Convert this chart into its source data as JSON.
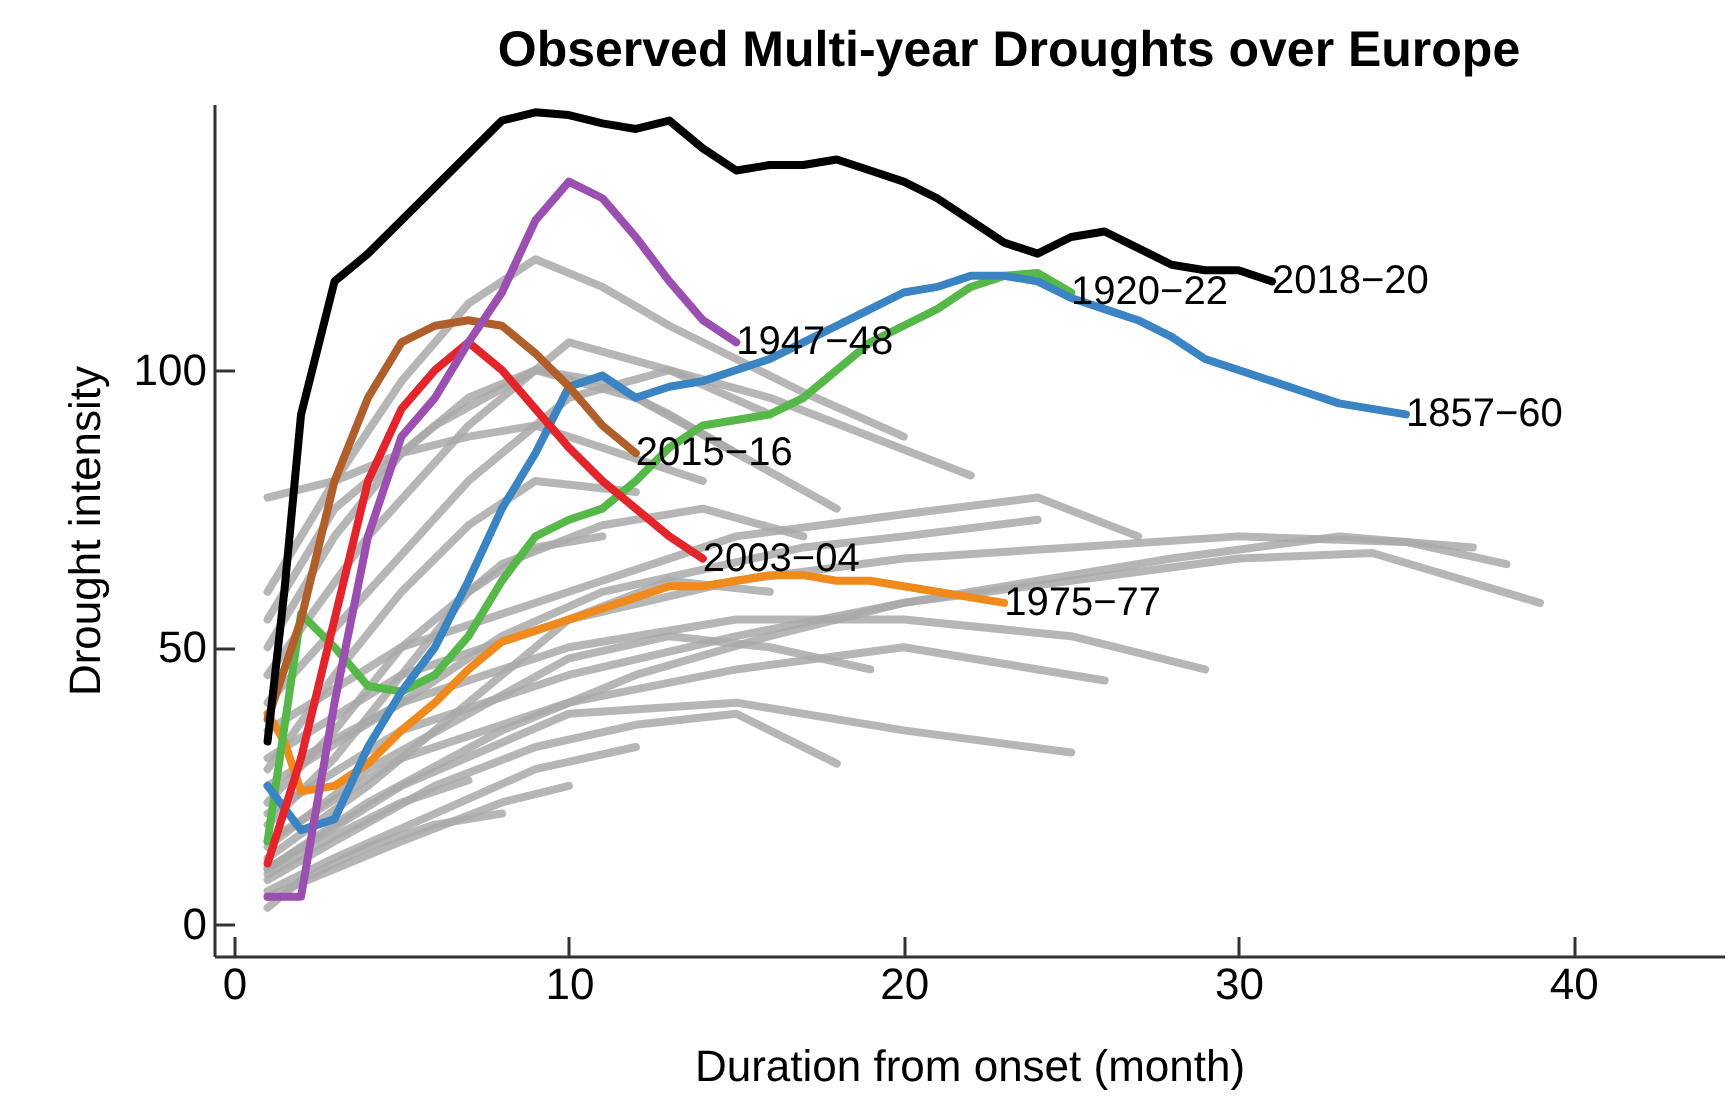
{
  "chart_data": {
    "type": "line",
    "title": "Observed Multi-year Droughts over Europe",
    "xlabel": "Duration from onset (month)",
    "ylabel": "Drought intensity",
    "xlim": [
      -0.6,
      44.5
    ],
    "ylim": [
      -5.7,
      148
    ],
    "xticks": [
      0,
      10,
      20,
      30,
      40
    ],
    "yticks": [
      0,
      50,
      100
    ],
    "series": [
      {
        "color": "#a9a9a9",
        "x": [
          1,
          3,
          5,
          7,
          9,
          11,
          13,
          15,
          17,
          20
        ],
        "values": [
          60,
          80,
          98,
          112,
          120,
          115,
          108,
          102,
          96,
          88
        ]
      },
      {
        "color": "#a9a9a9",
        "x": [
          1,
          5,
          10,
          15,
          20,
          25,
          30,
          35,
          38
        ],
        "values": [
          30,
          45,
          55,
          62,
          66,
          68,
          70,
          69,
          65
        ]
      },
      {
        "color": "#a9a9a9",
        "x": [
          1,
          5,
          10,
          15,
          20,
          25,
          30,
          34,
          39
        ],
        "values": [
          20,
          35,
          45,
          52,
          58,
          62,
          66,
          67,
          58
        ]
      },
      {
        "color": "#a9a9a9",
        "x": [
          1,
          5,
          10,
          15,
          20,
          26
        ],
        "values": [
          15,
          30,
          40,
          46,
          50,
          44
        ]
      },
      {
        "color": "#a9a9a9",
        "x": [
          1,
          5,
          10,
          15,
          20,
          25
        ],
        "values": [
          10,
          25,
          38,
          40,
          35,
          31
        ]
      },
      {
        "color": "#a9a9a9",
        "x": [
          1,
          5,
          10,
          15,
          20,
          25,
          29
        ],
        "values": [
          25,
          40,
          50,
          55,
          55,
          52,
          46
        ]
      },
      {
        "color": "#a9a9a9",
        "x": [
          1,
          3,
          5,
          7,
          9,
          11,
          13,
          15
        ],
        "values": [
          50,
          70,
          85,
          95,
          100,
          98,
          92,
          85
        ]
      },
      {
        "color": "#a9a9a9",
        "x": [
          1,
          3,
          5,
          7,
          9,
          11,
          14
        ],
        "values": [
          77,
          80,
          85,
          88,
          90,
          86,
          80
        ]
      },
      {
        "color": "#a9a9a9",
        "x": [
          1,
          5,
          10,
          15,
          20,
          24,
          27
        ],
        "values": [
          35,
          50,
          60,
          70,
          74,
          77,
          70
        ]
      },
      {
        "color": "#a9a9a9",
        "x": [
          1,
          4,
          7,
          10,
          13,
          16,
          19,
          22
        ],
        "values": [
          40,
          60,
          80,
          95,
          100,
          95,
          88,
          81
        ]
      },
      {
        "color": "#a9a9a9",
        "x": [
          1,
          4,
          7,
          10,
          13,
          16
        ],
        "values": [
          45,
          70,
          90,
          105,
          100,
          92
        ]
      },
      {
        "color": "#a9a9a9",
        "x": [
          1,
          3,
          6,
          9,
          12,
          15,
          18
        ],
        "values": [
          8,
          15,
          25,
          32,
          36,
          38,
          29
        ]
      },
      {
        "color": "#a9a9a9",
        "x": [
          1,
          3,
          5,
          8,
          10
        ],
        "values": [
          5,
          10,
          15,
          22,
          25
        ]
      },
      {
        "color": "#a9a9a9",
        "x": [
          1,
          3,
          6,
          9,
          12
        ],
        "values": [
          6,
          12,
          20,
          28,
          32
        ]
      },
      {
        "color": "#a9a9a9",
        "x": [
          1,
          4,
          7,
          10,
          13,
          16
        ],
        "values": [
          12,
          25,
          40,
          55,
          62,
          60
        ]
      },
      {
        "color": "#a9a9a9",
        "x": [
          1,
          3,
          5,
          7,
          9,
          11
        ],
        "values": [
          18,
          30,
          45,
          60,
          68,
          70
        ]
      },
      {
        "color": "#a9a9a9",
        "x": [
          1,
          2,
          4,
          6,
          8
        ],
        "values": [
          3,
          8,
          14,
          18,
          20
        ]
      },
      {
        "color": "#a9a9a9",
        "x": [
          1,
          4,
          8,
          12,
          16,
          20,
          24,
          28,
          33,
          37
        ],
        "values": [
          10,
          22,
          35,
          45,
          52,
          58,
          62,
          66,
          70,
          68
        ]
      },
      {
        "color": "#a9a9a9",
        "x": [
          1,
          3,
          6,
          9,
          12,
          15,
          18
        ],
        "values": [
          55,
          75,
          90,
          100,
          95,
          85,
          75
        ]
      },
      {
        "color": "#a9a9a9",
        "x": [
          1,
          3,
          5,
          7,
          9,
          12
        ],
        "values": [
          28,
          45,
          60,
          72,
          80,
          78
        ]
      },
      {
        "color": "#a9a9a9",
        "x": [
          1,
          3,
          5,
          8,
          11,
          14,
          17
        ],
        "values": [
          22,
          35,
          50,
          65,
          72,
          75,
          70
        ]
      },
      {
        "color": "#a9a9a9",
        "x": [
          2,
          5,
          8,
          11,
          14,
          17,
          20,
          24
        ],
        "values": [
          30,
          40,
          52,
          60,
          64,
          68,
          70,
          73
        ]
      },
      {
        "color": "#a9a9a9",
        "x": [
          1,
          4,
          7,
          10,
          13,
          16,
          19
        ],
        "values": [
          14,
          28,
          38,
          48,
          52,
          50,
          46
        ]
      },
      {
        "color": "#a9a9a9",
        "x": [
          1,
          3,
          5,
          7
        ],
        "values": [
          9,
          16,
          22,
          26
        ]
      },
      {
        "name": "1975−77",
        "color": "#f08a1d",
        "x": [
          1,
          1.5,
          2,
          3,
          4,
          5,
          6,
          7,
          8,
          9,
          10,
          11,
          12,
          13,
          14,
          15,
          16,
          17,
          18,
          19,
          20,
          21,
          22,
          23
        ],
        "values": [
          38,
          33,
          24,
          25,
          29,
          35,
          40,
          46,
          51,
          53,
          55,
          57,
          59,
          61,
          61,
          62,
          63,
          63,
          62,
          62,
          61,
          60,
          59,
          58
        ]
      },
      {
        "name": "1920−22",
        "color": "#56b848",
        "x": [
          1,
          2,
          3,
          4,
          5,
          6,
          7,
          8,
          9,
          10,
          11,
          12,
          13,
          14,
          15,
          16,
          17,
          18,
          19,
          20,
          21,
          22,
          23,
          24,
          25
        ],
        "values": [
          15,
          56,
          50,
          43,
          42,
          45,
          52,
          62,
          70,
          73,
          75,
          80,
          86,
          90,
          91,
          92,
          95,
          100,
          105,
          108,
          111,
          115,
          117,
          117.5,
          114
        ]
      },
      {
        "name": "1857−60",
        "color": "#3a84c3",
        "x": [
          1,
          2,
          3,
          4,
          5,
          6,
          7,
          8,
          9,
          10,
          11,
          12,
          13,
          14,
          15,
          16,
          17,
          18,
          19,
          20,
          21,
          22,
          23,
          24,
          25,
          26,
          27,
          28,
          29,
          30,
          31,
          32,
          33,
          34,
          35
        ],
        "values": [
          25,
          17,
          19,
          32,
          42,
          50,
          62,
          75,
          85,
          97,
          99,
          95,
          97,
          98,
          100,
          102,
          105,
          108,
          111,
          114,
          115,
          117,
          117,
          116,
          113,
          111,
          109,
          106,
          102,
          100,
          98,
          96,
          94,
          93,
          92
        ]
      },
      {
        "name": "2003−04",
        "color": "#e3242b",
        "x": [
          1,
          2,
          3,
          4,
          5,
          6,
          7,
          8,
          9,
          10,
          11,
          12,
          13,
          14
        ],
        "values": [
          11,
          30,
          55,
          80,
          93,
          100,
          105,
          100,
          93,
          86,
          80,
          75,
          70,
          66
        ]
      },
      {
        "name": "2015−16",
        "color": "#b05f2a",
        "x": [
          1,
          2,
          3,
          4,
          5,
          6,
          7,
          8,
          9,
          10,
          11,
          12
        ],
        "values": [
          37,
          55,
          80,
          95,
          105,
          108,
          109,
          108,
          103,
          97,
          90,
          85
        ]
      },
      {
        "name": "1947−48",
        "color": "#9b4fb0",
        "x": [
          1,
          2,
          3,
          4,
          5,
          6,
          7,
          8,
          9,
          10,
          11,
          12,
          13,
          14,
          15
        ],
        "values": [
          5,
          5,
          40,
          70,
          88,
          95,
          105,
          114,
          127,
          134,
          131,
          124,
          116,
          109,
          105
        ]
      },
      {
        "name": "2018−20",
        "color": "#000000",
        "x": [
          1,
          1.5,
          2,
          3,
          4,
          5,
          6,
          7,
          8,
          9,
          10,
          11,
          12,
          13,
          14,
          15,
          16,
          17,
          18,
          19,
          20,
          21,
          22,
          23,
          24,
          25,
          26,
          27,
          28,
          29,
          30,
          31
        ],
        "values": [
          33,
          60,
          92,
          116,
          121,
          127,
          133,
          139,
          145,
          146.5,
          146,
          144.5,
          143.5,
          145,
          140,
          136,
          137,
          137,
          138,
          136,
          134,
          131,
          127,
          123,
          121,
          124,
          125,
          122,
          119,
          118,
          118,
          116
        ]
      }
    ]
  }
}
